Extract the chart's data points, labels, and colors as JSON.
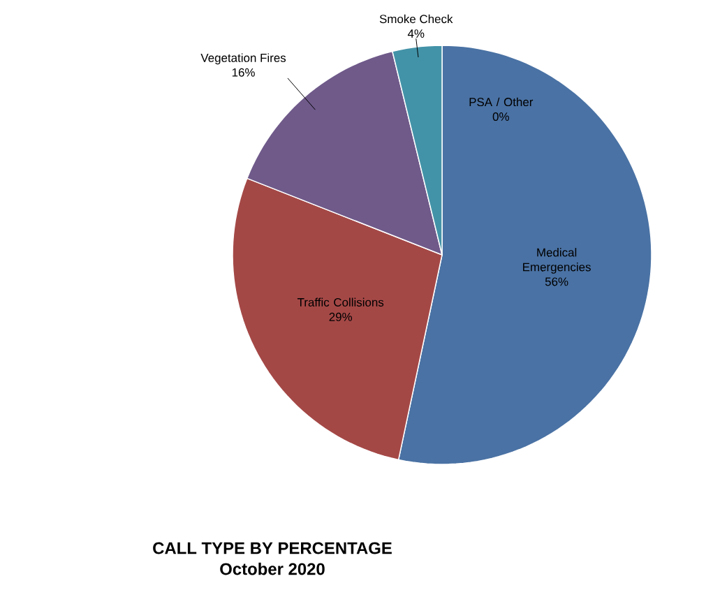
{
  "chart_data": {
    "type": "pie",
    "title": "CALL TYPE BY PERCENTAGE",
    "subtitle": "October 2020",
    "categories": [
      "PSA / Other",
      "Medical Emergencies",
      "Traffic Collisions",
      "Vegetation Fires",
      "Smoke Check"
    ],
    "values": [
      0,
      56,
      29,
      16,
      4
    ],
    "value_labels": [
      "0%",
      "56%",
      "29%",
      "16%",
      "4%"
    ],
    "colors": [
      "#e08a2c",
      "#4a72a4",
      "#a44846",
      "#6f5a8a",
      "#4393a8"
    ]
  }
}
